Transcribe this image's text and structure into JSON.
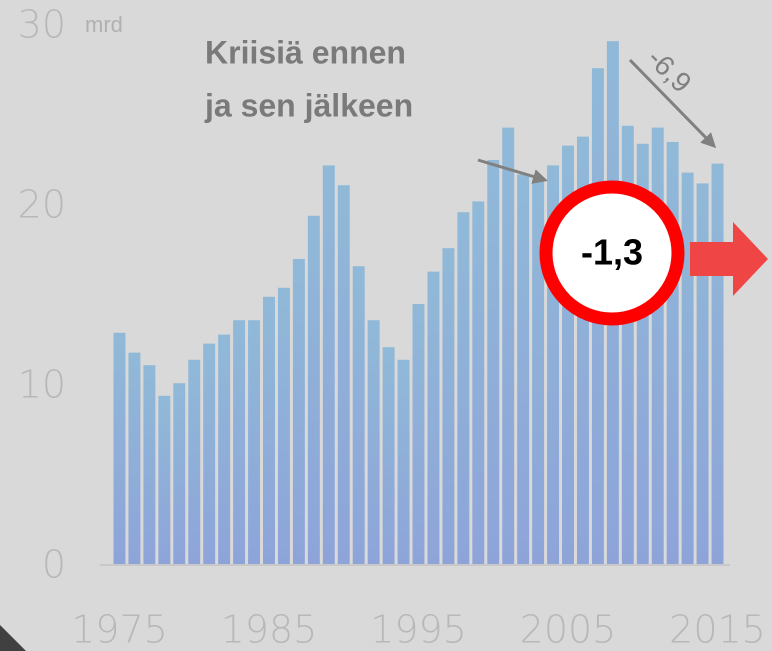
{
  "chart_data": {
    "type": "bar",
    "unit_label": "mrd",
    "annotations": [
      "Kriisiä ennen",
      "ja sen jälkeen",
      "-6,9",
      "-1,3"
    ],
    "x": [
      1975,
      1976,
      1977,
      1978,
      1979,
      1980,
      1981,
      1982,
      1983,
      1984,
      1985,
      1986,
      1987,
      1988,
      1989,
      1990,
      1991,
      1992,
      1993,
      1994,
      1995,
      1996,
      1997,
      1998,
      1999,
      2000,
      2001,
      2002,
      2003,
      2004,
      2005,
      2006,
      2007,
      2008,
      2009,
      2010,
      2011,
      2012,
      2013,
      2014,
      2015
    ],
    "values": [
      12.9,
      11.8,
      11.1,
      9.4,
      10.1,
      11.4,
      12.3,
      12.8,
      13.6,
      13.6,
      14.9,
      15.4,
      17.0,
      19.4,
      22.2,
      21.1,
      16.6,
      13.6,
      12.1,
      11.4,
      14.5,
      16.3,
      17.6,
      19.6,
      20.2,
      22.5,
      24.3,
      21.7,
      21.4,
      22.2,
      23.3,
      23.8,
      27.6,
      29.1,
      24.4,
      23.4,
      24.3,
      23.5,
      21.8,
      21.2,
      22.3
    ],
    "color": "#8fb3d9",
    "xlim": [
      1974.5,
      2015.5
    ],
    "xticks": [
      1975,
      1985,
      1995,
      2005,
      2015
    ],
    "ylim": [
      0,
      30
    ],
    "yticks": [
      0,
      10,
      20,
      30
    ]
  }
}
